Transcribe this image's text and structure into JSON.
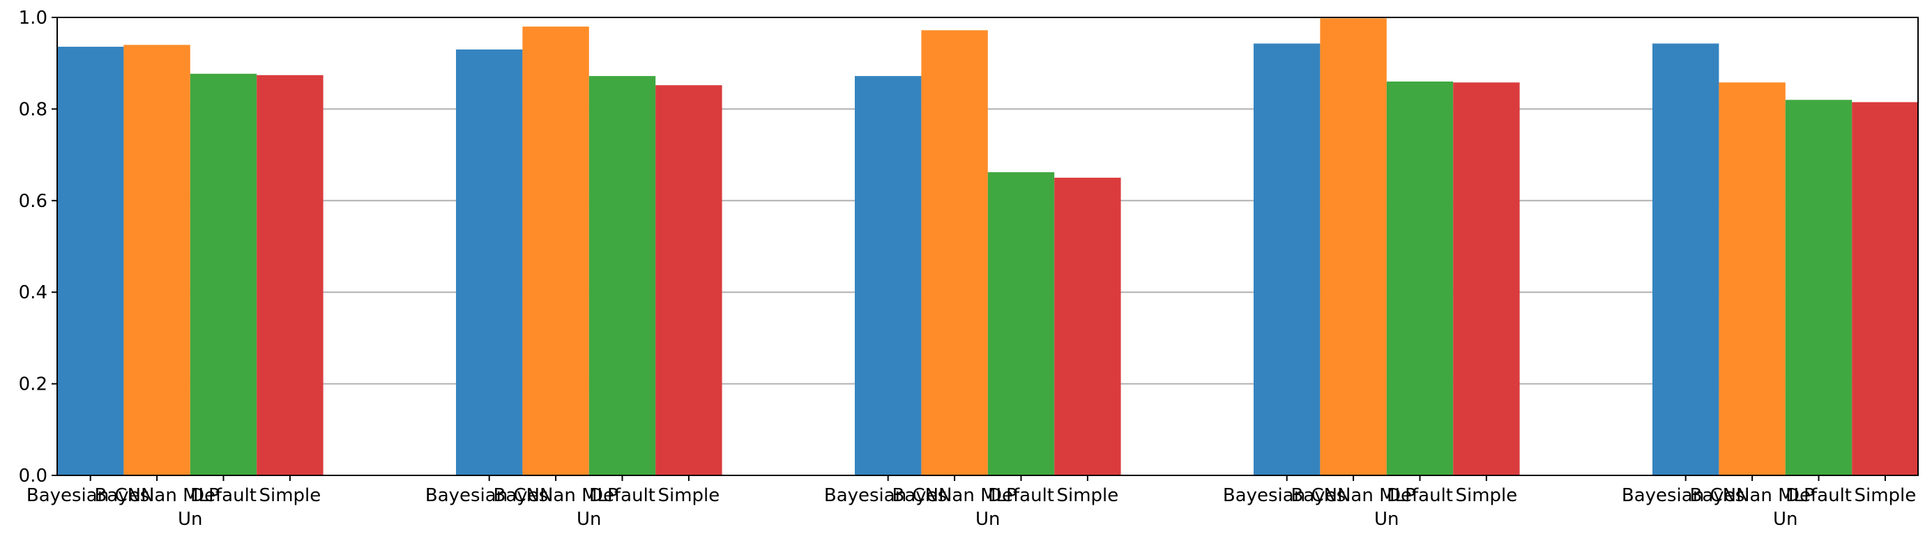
{
  "chart_data": {
    "type": "bar",
    "groups": [
      "Un",
      "Un",
      "Un",
      "Un",
      "Un"
    ],
    "bar_labels": [
      "Bayesian CNN",
      "Bayesian MLP",
      "Default",
      "Simple"
    ],
    "series": [
      {
        "values": [
          0.936,
          0.93,
          0.872,
          0.943,
          0.943
        ],
        "color": "#3584bf"
      },
      {
        "values": [
          0.94,
          0.98,
          0.972,
          0.998,
          0.858
        ],
        "color": "#ff8c28"
      },
      {
        "values": [
          0.877,
          0.872,
          0.662,
          0.86,
          0.82
        ],
        "color": "#40a840"
      },
      {
        "values": [
          0.874,
          0.852,
          0.65,
          0.858,
          0.815
        ],
        "color": "#da3c3d"
      }
    ],
    "ylim": [
      0,
      1.0
    ],
    "yticks": [
      "0.0",
      "0.2",
      "0.4",
      "0.6",
      "0.8",
      "1.0"
    ],
    "grid": {
      "y": true,
      "color": "#b0b0b0"
    }
  }
}
